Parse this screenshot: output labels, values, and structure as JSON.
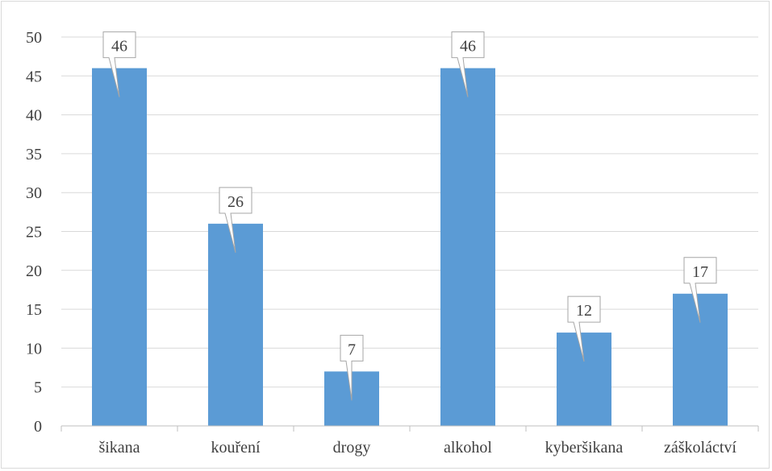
{
  "chart_data": {
    "type": "bar",
    "categories": [
      "šikana",
      "kouření",
      "drogy",
      "alkohol",
      "kyberšikana",
      "záškoláctví"
    ],
    "values": [
      46,
      26,
      7,
      46,
      12,
      17
    ],
    "data_labels": [
      "46",
      "26",
      "7",
      "46",
      "12",
      "17"
    ],
    "title": "",
    "xlabel": "",
    "ylabel": "",
    "ylim": [
      0,
      50
    ],
    "yticks": [
      0,
      5,
      10,
      15,
      20,
      25,
      30,
      35,
      40,
      45,
      50
    ],
    "ytick_labels": [
      "0",
      "5",
      "10",
      "15",
      "20",
      "25",
      "30",
      "35",
      "40",
      "45",
      "50"
    ],
    "grid": true,
    "legend": "none",
    "colors": {
      "bar": "#5b9bd5",
      "grid": "#d9d9d9",
      "axis": "#bfbfbf",
      "text": "#404040",
      "callout_border": "#a6a6a6",
      "callout_fill": "#ffffff"
    }
  }
}
